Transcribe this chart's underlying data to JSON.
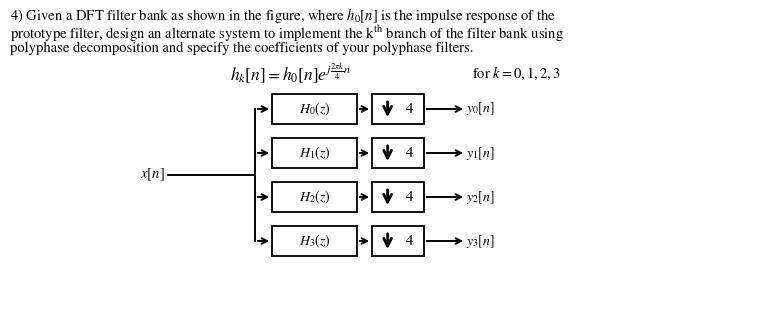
{
  "line1": "4) Given a DFT filter bank as shown in the figure, where $h_0[n]$ is the impulse response of the",
  "line2": "prototype filter, design an alternate system to implement the k$^{\\mathrm{th}}$ branch of the filter bank using",
  "line3": "polyphase decomposition and specify the coefficients of your polyphase filters.",
  "equation": "$h_k[n] = h_0[n]e^{j\\frac{2\\pi k}{4}n}$",
  "for_k": "for $k = 0,1,2,3$",
  "filters": [
    "$H_0(z)$",
    "$H_1(z)$",
    "$H_2(z)$",
    "$H_3(z)$"
  ],
  "outputs": [
    "$y_0[n]$",
    "$y_1[n]$",
    "$y_2[n]$",
    "$y_3[n]$"
  ],
  "input_label": "$x[n]$",
  "downsample_factor": "4",
  "bg_color": "#ffffff",
  "text_color": "#000000",
  "box_edge_color": "#000000",
  "font_size_body": 10.5,
  "font_size_eq": 12.5,
  "font_size_labels": 10.5
}
